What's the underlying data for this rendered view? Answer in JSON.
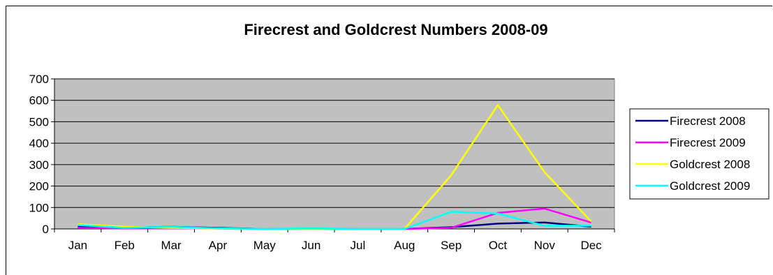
{
  "chart_data": {
    "type": "line",
    "title": "Firecrest and Goldcrest Numbers 2008-09",
    "xlabel": "",
    "ylabel": "",
    "categories": [
      "Jan",
      "Feb",
      "Mar",
      "Apr",
      "May",
      "Jun",
      "Jul",
      "Aug",
      "Sep",
      "Oct",
      "Nov",
      "Dec"
    ],
    "ylim": [
      0,
      700
    ],
    "yticks": [
      0,
      100,
      200,
      300,
      400,
      500,
      600,
      700
    ],
    "grid": true,
    "legend_position": "right",
    "plot_background": "#c0c0c0",
    "series": [
      {
        "name": "Firecrest 2008",
        "color": "#000080",
        "values": [
          10,
          5,
          10,
          5,
          0,
          0,
          0,
          0,
          8,
          25,
          30,
          10
        ]
      },
      {
        "name": "Firecrest 2009",
        "color": "#ff00ff",
        "values": [
          5,
          2,
          3,
          2,
          0,
          0,
          0,
          0,
          5,
          75,
          95,
          30
        ]
      },
      {
        "name": "Goldcrest 2008",
        "color": "#ffff00",
        "values": [
          22,
          10,
          5,
          2,
          0,
          0,
          0,
          0,
          250,
          578,
          265,
          35
        ]
      },
      {
        "name": "Goldcrest 2009",
        "color": "#00ffff",
        "values": [
          18,
          5,
          10,
          3,
          0,
          3,
          0,
          0,
          80,
          72,
          15,
          15
        ]
      }
    ]
  }
}
